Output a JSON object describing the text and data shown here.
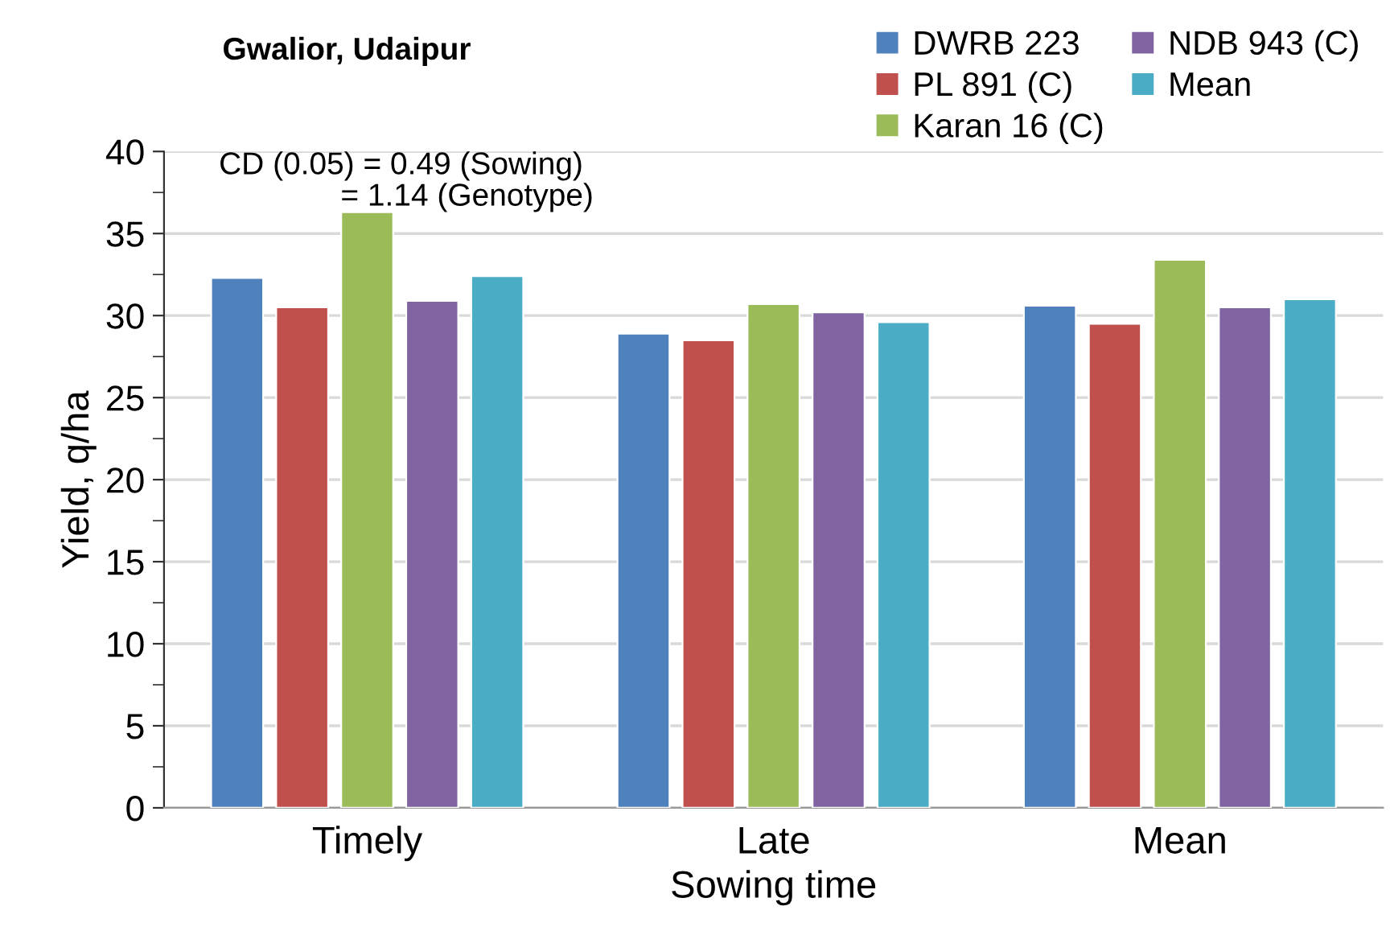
{
  "chart_data": {
    "type": "bar",
    "title": "Gwalior, Udaipur",
    "xlabel": "Sowing time",
    "ylabel": "Yield, q/ha",
    "categories": [
      "Timely",
      "Late",
      "Mean"
    ],
    "series": [
      {
        "name": "DWRB 223",
        "color": "#4f81bd",
        "values": [
          32.3,
          28.9,
          30.6
        ]
      },
      {
        "name": "PL 891 (C)",
        "color": "#c0504d",
        "values": [
          30.5,
          28.5,
          29.5
        ]
      },
      {
        "name": "Karan 16 (C)",
        "color": "#9bbb59",
        "values": [
          36.3,
          30.7,
          33.4
        ]
      },
      {
        "name": "NDB 943 (C)",
        "color": "#8064a2",
        "values": [
          30.9,
          30.2,
          30.5
        ]
      },
      {
        "name": "Mean",
        "color": "#4bacc6",
        "values": [
          32.4,
          29.6,
          31.0
        ]
      }
    ],
    "ylim": [
      0,
      40
    ],
    "yticks": [
      0,
      {
        "value": 2.5,
        "label": null
      },
      5,
      {
        "value": 7.5,
        "label": null
      },
      10,
      {
        "value": 12.5,
        "label": null
      },
      15,
      {
        "value": 17.5,
        "label": null
      },
      20,
      {
        "value": 22.5,
        "label": null
      },
      25,
      {
        "value": 27.5,
        "label": null
      },
      30,
      {
        "value": 32.5,
        "label": null
      },
      35,
      {
        "value": 37.5,
        "label": null
      },
      40
    ],
    "grid": "y",
    "legend": "top right",
    "annotations": [
      "CD (0.05) = 0.49 (Sowing)\n              = 1.14 (Genotype)"
    ]
  }
}
